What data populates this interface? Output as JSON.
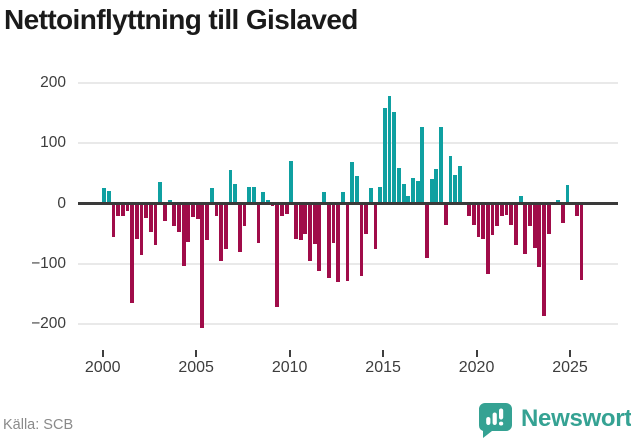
{
  "title": "Nettoinflyttning till Gislaved",
  "footer": {
    "source": "Källa: SCB",
    "logo_text": "Newsworthy"
  },
  "colors": {
    "positive": "#0fa0a1",
    "negative": "#a00c49",
    "logo": "#35a293",
    "grid": "#e9e9e9",
    "zero_line": "#3a3a3a",
    "axis_text": "#3d3d3d",
    "title_text": "#1a1a1a",
    "source_text": "#8a8a8a"
  },
  "chart_data": {
    "type": "bar",
    "title": "Nettoinflyttning till Gislaved",
    "xlabel": "",
    "ylabel": "",
    "frequency": "quarterly",
    "x_start": "2000-Q1",
    "x_end": "2025-Q3",
    "ylim": [
      -230,
      230
    ],
    "grid": true,
    "legend": "none",
    "positive_color_meaning": "net in-migration",
    "negative_color_meaning": "net out-migration",
    "y_ticks": [
      {
        "value": 200,
        "label": "200"
      },
      {
        "value": 100,
        "label": "100"
      },
      {
        "value": 0,
        "label": "0"
      },
      {
        "value": -100,
        "label": "−100"
      },
      {
        "value": -200,
        "label": "−200"
      }
    ],
    "x_ticks": [
      {
        "year": 2000,
        "label": "2000"
      },
      {
        "year": 2005,
        "label": "2005"
      },
      {
        "year": 2010,
        "label": "2010"
      },
      {
        "year": 2015,
        "label": "2015"
      },
      {
        "year": 2020,
        "label": "2020"
      },
      {
        "year": 2025,
        "label": "2025"
      }
    ],
    "categories": [
      "2000Q1",
      "2000Q2",
      "2000Q3",
      "2000Q4",
      "2001Q1",
      "2001Q2",
      "2001Q3",
      "2001Q4",
      "2002Q1",
      "2002Q2",
      "2002Q3",
      "2002Q4",
      "2003Q1",
      "2003Q2",
      "2003Q3",
      "2003Q4",
      "2004Q1",
      "2004Q2",
      "2004Q3",
      "2004Q4",
      "2005Q1",
      "2005Q2",
      "2005Q3",
      "2005Q4",
      "2006Q1",
      "2006Q2",
      "2006Q3",
      "2006Q4",
      "2007Q1",
      "2007Q2",
      "2007Q3",
      "2007Q4",
      "2008Q1",
      "2008Q2",
      "2008Q3",
      "2008Q4",
      "2009Q1",
      "2009Q2",
      "2009Q3",
      "2009Q4",
      "2010Q1",
      "2010Q2",
      "2010Q3",
      "2010Q4",
      "2011Q1",
      "2011Q2",
      "2011Q3",
      "2011Q4",
      "2012Q1",
      "2012Q2",
      "2012Q3",
      "2012Q4",
      "2013Q1",
      "2013Q2",
      "2013Q3",
      "2013Q4",
      "2014Q1",
      "2014Q2",
      "2014Q3",
      "2014Q4",
      "2015Q1",
      "2015Q2",
      "2015Q3",
      "2015Q4",
      "2016Q1",
      "2016Q2",
      "2016Q3",
      "2016Q4",
      "2017Q1",
      "2017Q2",
      "2017Q3",
      "2017Q4",
      "2018Q1",
      "2018Q2",
      "2018Q3",
      "2018Q4",
      "2019Q1",
      "2019Q2",
      "2019Q3",
      "2019Q4",
      "2020Q1",
      "2020Q2",
      "2020Q3",
      "2020Q4",
      "2021Q1",
      "2021Q2",
      "2021Q3",
      "2021Q4",
      "2022Q1",
      "2022Q2",
      "2022Q3",
      "2022Q4",
      "2023Q1",
      "2023Q2",
      "2023Q3",
      "2023Q4",
      "2024Q1",
      "2024Q2",
      "2024Q3",
      "2024Q4",
      "2025Q1",
      "2025Q2",
      "2025Q3"
    ],
    "values": [
      26,
      20,
      -56,
      -21,
      -20,
      -13,
      -165,
      -58,
      -86,
      -24,
      -48,
      -68,
      35,
      -29,
      5,
      -37,
      -48,
      -103,
      -64,
      -22,
      -26,
      -207,
      -60,
      26,
      -21,
      -96,
      -75,
      56,
      33,
      -80,
      -37,
      27,
      27,
      -65,
      19,
      5,
      -4,
      -172,
      -20,
      -17,
      70,
      -58,
      -61,
      -51,
      -96,
      -67,
      -112,
      19,
      -123,
      -66,
      -130,
      19,
      -128,
      68,
      45,
      -120,
      -50,
      26,
      -75,
      28,
      159,
      178,
      152,
      59,
      33,
      13,
      42,
      37,
      127,
      -91,
      40,
      57,
      127,
      -36,
      78,
      48,
      62,
      -2,
      -21,
      -36,
      -56,
      -59,
      -117,
      -53,
      -37,
      -21,
      -19,
      -35,
      -68,
      13,
      -83,
      -37,
      -73,
      -105,
      -186,
      -51,
      3,
      5,
      -33,
      31,
      -2,
      -21,
      -126
    ]
  }
}
